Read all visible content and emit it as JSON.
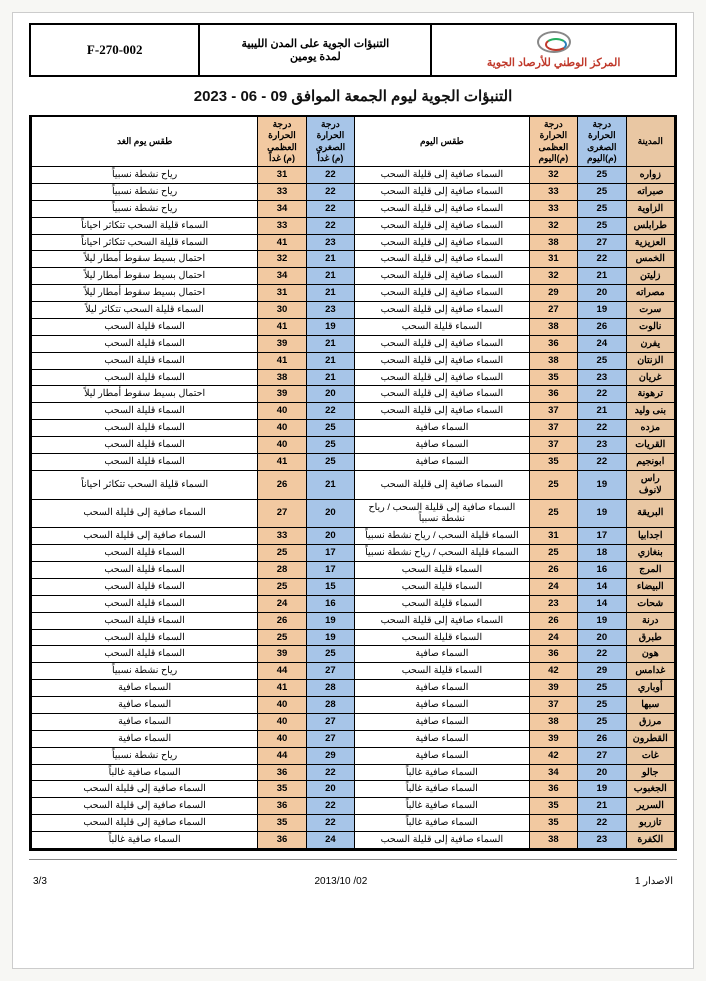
{
  "header": {
    "code": "F-270-002",
    "doc_title_l1": "التنبؤات الجوية على المدن الليبية",
    "doc_title_l2": "لمدة يومين",
    "org_name": "المركز الوطني للأرصاد الجوية"
  },
  "main_title": "التنبؤات الجوية ليوم الجمعة الموافق 09 - 06 - 2023",
  "columns": {
    "city": "المدينة",
    "tmin_today_l1": "درجة الحرارة الصغرى",
    "tmin_today_l2": "(م)اليوم",
    "tmax_today_l1": "درجة الحرارة العظمى",
    "tmax_today_l2": "(م)اليوم",
    "wx_today": "طقس اليوم",
    "tmin_tom_l1": "درجة الحرارة الصغرى",
    "tmin_tom_l2": "(م) غداً",
    "tmax_tom_l1": "درجة الحرارة العظمى",
    "tmax_tom_l2": "(م) غداً",
    "wx_tom": "طقس يوم الغد"
  },
  "colors": {
    "city_bg": "#e9c7a3",
    "tmin_bg": "#a7c5e8",
    "tmax_bg": "#f2c9a1",
    "wx_bg": "#ffffff",
    "org_color": "#c0392b",
    "border": "#000000",
    "page_bg": "#ffffff",
    "body_bg": "#f7f7f4"
  },
  "rows": [
    {
      "city": "زواره",
      "tmin_t": 25,
      "tmax_t": 32,
      "wx_t": "السماء صافية إلى قليلة السحب",
      "tmin_m": 22,
      "tmax_m": 31,
      "wx_m": "رياح نشطة نسبياً"
    },
    {
      "city": "صبراته",
      "tmin_t": 25,
      "tmax_t": 33,
      "wx_t": "السماء صافية إلى قليلة السحب",
      "tmin_m": 22,
      "tmax_m": 33,
      "wx_m": "رياح نشطة نسبياً"
    },
    {
      "city": "الزاوية",
      "tmin_t": 25,
      "tmax_t": 33,
      "wx_t": "السماء صافية إلى قليلة السحب",
      "tmin_m": 22,
      "tmax_m": 34,
      "wx_m": "رياح نشطة نسبياً"
    },
    {
      "city": "طرابلس",
      "tmin_t": 25,
      "tmax_t": 32,
      "wx_t": "السماء صافية إلى قليلة السحب",
      "tmin_m": 22,
      "tmax_m": 33,
      "wx_m": "السماء قليلة السحب تتكاثر احياناً"
    },
    {
      "city": "العزيزية",
      "tmin_t": 27,
      "tmax_t": 38,
      "wx_t": "السماء صافية إلى قليلة السحب",
      "tmin_m": 23,
      "tmax_m": 41,
      "wx_m": "السماء قليلة السحب تتكاثر احياناً"
    },
    {
      "city": "الخمس",
      "tmin_t": 22,
      "tmax_t": 31,
      "wx_t": "السماء صافية إلى قليلة السحب",
      "tmin_m": 21,
      "tmax_m": 32,
      "wx_m": "احتمال بسيط سقوط أمطار ليلاً"
    },
    {
      "city": "زليتن",
      "tmin_t": 21,
      "tmax_t": 32,
      "wx_t": "السماء صافية إلى قليلة السحب",
      "tmin_m": 21,
      "tmax_m": 34,
      "wx_m": "احتمال بسيط سقوط أمطار ليلاً"
    },
    {
      "city": "مصراته",
      "tmin_t": 20,
      "tmax_t": 29,
      "wx_t": "السماء صافية إلى قليلة السحب",
      "tmin_m": 21,
      "tmax_m": 31,
      "wx_m": "احتمال بسيط سقوط أمطار ليلاً"
    },
    {
      "city": "سرت",
      "tmin_t": 19,
      "tmax_t": 27,
      "wx_t": "السماء صافية إلى قليلة السحب",
      "tmin_m": 23,
      "tmax_m": 30,
      "wx_m": "السماء قليلة السحب تتكاثر ليلاً"
    },
    {
      "city": "نالوت",
      "tmin_t": 26,
      "tmax_t": 38,
      "wx_t": "السماء قليلة السحب",
      "tmin_m": 19,
      "tmax_m": 41,
      "wx_m": "السماء قليلة السحب"
    },
    {
      "city": "يفرن",
      "tmin_t": 24,
      "tmax_t": 36,
      "wx_t": "السماء صافية إلى قليلة السحب",
      "tmin_m": 21,
      "tmax_m": 39,
      "wx_m": "السماء قليلة السحب"
    },
    {
      "city": "الزنتان",
      "tmin_t": 25,
      "tmax_t": 38,
      "wx_t": "السماء صافية إلى قليلة السحب",
      "tmin_m": 21,
      "tmax_m": 41,
      "wx_m": "السماء قليلة السحب"
    },
    {
      "city": "غريان",
      "tmin_t": 23,
      "tmax_t": 35,
      "wx_t": "السماء صافية إلى قليلة السحب",
      "tmin_m": 21,
      "tmax_m": 38,
      "wx_m": "السماء قليلة السحب"
    },
    {
      "city": "ترهونة",
      "tmin_t": 22,
      "tmax_t": 36,
      "wx_t": "السماء صافية إلى قليلة السحب",
      "tmin_m": 20,
      "tmax_m": 39,
      "wx_m": "احتمال بسيط سقوط أمطار ليلاً"
    },
    {
      "city": "بنى وليد",
      "tmin_t": 21,
      "tmax_t": 37,
      "wx_t": "السماء صافية إلى قليلة السحب",
      "tmin_m": 22,
      "tmax_m": 40,
      "wx_m": "السماء قليلة السحب"
    },
    {
      "city": "مزده",
      "tmin_t": 22,
      "tmax_t": 37,
      "wx_t": "السماء صافية",
      "tmin_m": 25,
      "tmax_m": 40,
      "wx_m": "السماء قليلة السحب"
    },
    {
      "city": "القريات",
      "tmin_t": 23,
      "tmax_t": 37,
      "wx_t": "السماء صافية",
      "tmin_m": 25,
      "tmax_m": 40,
      "wx_m": "السماء قليلة السحب"
    },
    {
      "city": "ابونجيم",
      "tmin_t": 22,
      "tmax_t": 35,
      "wx_t": "السماء صافية",
      "tmin_m": 25,
      "tmax_m": 41,
      "wx_m": "السماء قليلة السحب"
    },
    {
      "city": "راس لانوف",
      "tmin_t": 19,
      "tmax_t": 25,
      "wx_t": "السماء صافية إلى قليلة السحب",
      "tmin_m": 21,
      "tmax_m": 26,
      "wx_m": "السماء قليلة السحب تتكاثر احياناً"
    },
    {
      "city": "البريقة",
      "tmin_t": 19,
      "tmax_t": 25,
      "wx_t": "السماء صافية إلى قليلة السحب / رياح نشطة نسبياً",
      "tmin_m": 20,
      "tmax_m": 27,
      "wx_m": "السماء صافية إلى قليلة السحب"
    },
    {
      "city": "اجدابيا",
      "tmin_t": 17,
      "tmax_t": 31,
      "wx_t": "السماء قليلة السحب / رياح نشطة نسبياً",
      "tmin_m": 20,
      "tmax_m": 33,
      "wx_m": "السماء صافية إلى قليلة السحب"
    },
    {
      "city": "بنغازي",
      "tmin_t": 18,
      "tmax_t": 25,
      "wx_t": "السماء قليلة السحب / رياح نشطة نسبياً",
      "tmin_m": 17,
      "tmax_m": 25,
      "wx_m": "السماء قليلة السحب"
    },
    {
      "city": "المرج",
      "tmin_t": 16,
      "tmax_t": 26,
      "wx_t": "السماء قليلة السحب",
      "tmin_m": 17,
      "tmax_m": 28,
      "wx_m": "السماء قليلة السحب"
    },
    {
      "city": "البيضاء",
      "tmin_t": 14,
      "tmax_t": 24,
      "wx_t": "السماء قليلة السحب",
      "tmin_m": 15,
      "tmax_m": 25,
      "wx_m": "السماء قليلة السحب"
    },
    {
      "city": "شحات",
      "tmin_t": 14,
      "tmax_t": 23,
      "wx_t": "السماء قليلة السحب",
      "tmin_m": 16,
      "tmax_m": 24,
      "wx_m": "السماء قليلة السحب"
    },
    {
      "city": "درنة",
      "tmin_t": 19,
      "tmax_t": 26,
      "wx_t": "السماء صافية إلى قليلة السحب",
      "tmin_m": 19,
      "tmax_m": 26,
      "wx_m": "السماء قليلة السحب"
    },
    {
      "city": "طبرق",
      "tmin_t": 20,
      "tmax_t": 24,
      "wx_t": "السماء قليلة السحب",
      "tmin_m": 19,
      "tmax_m": 25,
      "wx_m": "السماء قليلة السحب"
    },
    {
      "city": "هون",
      "tmin_t": 22,
      "tmax_t": 36,
      "wx_t": "السماء صافية",
      "tmin_m": 25,
      "tmax_m": 39,
      "wx_m": "السماء قليلة السحب"
    },
    {
      "city": "غدامس",
      "tmin_t": 29,
      "tmax_t": 42,
      "wx_t": "السماء قليلة السحب",
      "tmin_m": 27,
      "tmax_m": 44,
      "wx_m": "رياح نشطة نسبياً"
    },
    {
      "city": "أوباري",
      "tmin_t": 25,
      "tmax_t": 39,
      "wx_t": "السماء صافية",
      "tmin_m": 28,
      "tmax_m": 41,
      "wx_m": "السماء صافية"
    },
    {
      "city": "سبها",
      "tmin_t": 25,
      "tmax_t": 37,
      "wx_t": "السماء صافية",
      "tmin_m": 28,
      "tmax_m": 40,
      "wx_m": "السماء صافية"
    },
    {
      "city": "مرزق",
      "tmin_t": 25,
      "tmax_t": 38,
      "wx_t": "السماء صافية",
      "tmin_m": 27,
      "tmax_m": 40,
      "wx_m": "السماء صافية"
    },
    {
      "city": "القطرون",
      "tmin_t": 26,
      "tmax_t": 39,
      "wx_t": "السماء صافية",
      "tmin_m": 27,
      "tmax_m": 40,
      "wx_m": "السماء صافية"
    },
    {
      "city": "غات",
      "tmin_t": 27,
      "tmax_t": 42,
      "wx_t": "السماء صافية",
      "tmin_m": 29,
      "tmax_m": 44,
      "wx_m": "رياح نشطة نسبياً"
    },
    {
      "city": "جالو",
      "tmin_t": 20,
      "tmax_t": 34,
      "wx_t": "السماء صافية غالباً",
      "tmin_m": 22,
      "tmax_m": 36,
      "wx_m": "السماء صافية غالباً"
    },
    {
      "city": "الجغبوب",
      "tmin_t": 19,
      "tmax_t": 36,
      "wx_t": "السماء صافية غالباً",
      "tmin_m": 20,
      "tmax_m": 35,
      "wx_m": "السماء صافية إلى قليلة السحب"
    },
    {
      "city": "السرير",
      "tmin_t": 21,
      "tmax_t": 35,
      "wx_t": "السماء صافية غالباً",
      "tmin_m": 22,
      "tmax_m": 36,
      "wx_m": "السماء صافية إلى قليلة السحب"
    },
    {
      "city": "تازربو",
      "tmin_t": 22,
      "tmax_t": 35,
      "wx_t": "السماء صافية غالباً",
      "tmin_m": 22,
      "tmax_m": 35,
      "wx_m": "السماء صافية إلى قليلة السحب"
    },
    {
      "city": "الكفرة",
      "tmin_t": 23,
      "tmax_t": 38,
      "wx_t": "السماء صافية إلى قليلة السحب",
      "tmin_m": 24,
      "tmax_m": 36,
      "wx_m": "السماء صافية غالباً"
    }
  ],
  "footer": {
    "issue": "الاصدار 1",
    "date": "2013/10 /02",
    "page": "3/3"
  }
}
